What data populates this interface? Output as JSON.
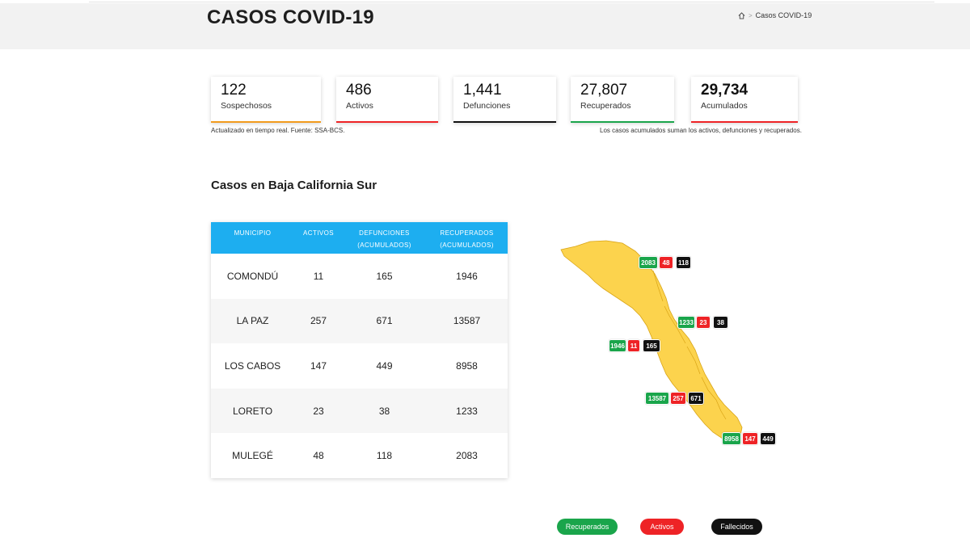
{
  "header": {
    "title": "CASOS COVID-19",
    "breadcrumb": {
      "current": "Casos COVID-19"
    }
  },
  "cards": [
    {
      "value": "122",
      "label": "Sospechosos",
      "color": "#f29b1d",
      "bold": false
    },
    {
      "value": "486",
      "label": "Activos",
      "color": "#ee2326",
      "bold": false
    },
    {
      "value": "1,441",
      "label": "Defunciones",
      "color": "#111111",
      "bold": false
    },
    {
      "value": "27,807",
      "label": "Recuperados",
      "color": "#1aa54b",
      "bold": false
    },
    {
      "value": "29,734",
      "label": "Acumulados",
      "color": "#ee2326",
      "bold": true
    }
  ],
  "notes": {
    "left": "Actualizado en tiempo real. Fuente: SSA-BCS.",
    "right": "Los casos acumulados suman los activos, defunciones y recuperados."
  },
  "section_title": "Casos en Baja California Sur",
  "table": {
    "headers": [
      [
        "MUNICIPIO"
      ],
      [
        "ACTIVOS"
      ],
      [
        "DEFUNCIONES",
        "(ACUMULADOS)"
      ],
      [
        "RECUPERADOS",
        "(ACUMULADOS)"
      ]
    ],
    "rows": [
      {
        "municipio": "COMONDÚ",
        "activos": "11",
        "defunciones": "165",
        "recuperados": "1946"
      },
      {
        "municipio": "LA PAZ",
        "activos": "257",
        "defunciones": "671",
        "recuperados": "13587"
      },
      {
        "municipio": "LOS CABOS",
        "activos": "147",
        "defunciones": "449",
        "recuperados": "8958"
      },
      {
        "municipio": "LORETO",
        "activos": "23",
        "defunciones": "38",
        "recuperados": "1233"
      },
      {
        "municipio": "MULEGÉ",
        "activos": "48",
        "defunciones": "118",
        "recuperados": "2083"
      }
    ]
  },
  "map_tags": [
    {
      "id": "mulege",
      "recuperados": "2083",
      "activos": "48",
      "fallecidos": "118"
    },
    {
      "id": "loreto",
      "recuperados": "1233",
      "activos": "23",
      "fallecidos": "38"
    },
    {
      "id": "comondu",
      "recuperados": "1946",
      "activos": "11",
      "fallecidos": "165"
    },
    {
      "id": "lapaz",
      "recuperados": "13587",
      "activos": "257",
      "fallecidos": "671"
    },
    {
      "id": "loscabos",
      "recuperados": "8958",
      "activos": "147",
      "fallecidos": "449"
    }
  ],
  "legend": {
    "recuperados": "Recuperados",
    "activos": "Activos",
    "fallecidos": "Fallecidos"
  },
  "colors": {
    "map_fill": "#fcd34d",
    "table_header": "#1daef0",
    "green": "#1aa54b",
    "red": "#ee2326",
    "black": "#111111"
  }
}
